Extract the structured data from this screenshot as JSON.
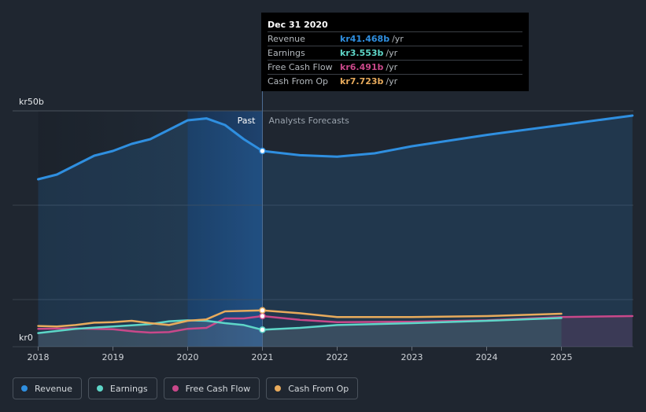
{
  "tooltip": {
    "date": "Dec 31 2020",
    "rows": [
      {
        "name": "Revenue",
        "value": "kr41.468b",
        "unit": "/yr",
        "color": "#2f8fe0"
      },
      {
        "name": "Earnings",
        "value": "kr3.553b",
        "unit": "/yr",
        "color": "#5ed6c8"
      },
      {
        "name": "Free Cash Flow",
        "value": "kr6.491b",
        "unit": "/yr",
        "color": "#c9488a"
      },
      {
        "name": "Cash From Op",
        "value": "kr7.723b",
        "unit": "/yr",
        "color": "#e8ab5c"
      }
    ]
  },
  "legend": [
    {
      "label": "Revenue",
      "color": "#2f8fe0"
    },
    {
      "label": "Earnings",
      "color": "#5ed6c8"
    },
    {
      "label": "Free Cash Flow",
      "color": "#c9488a"
    },
    {
      "label": "Cash From Op",
      "color": "#e8ab5c"
    }
  ],
  "chart_data": {
    "type": "line",
    "title": "",
    "xlabel": "",
    "ylabel": "",
    "y_unit_labels": {
      "top": "kr50b",
      "bottom": "kr0"
    },
    "ylim": [
      0,
      50
    ],
    "xlim": [
      2018.0,
      2025.95
    ],
    "x_ticks": [
      2018,
      2019,
      2020,
      2021,
      2022,
      2023,
      2024,
      2025
    ],
    "x_tick_labels": [
      "2018",
      "2019",
      "2020",
      "2021",
      "2022",
      "2023",
      "2024",
      "2025"
    ],
    "past_label": "Past",
    "forecast_label": "Analysts Forecasts",
    "divider_x": 2021.0,
    "series": [
      {
        "name": "Revenue",
        "color": "#2f8fe0",
        "points": [
          [
            2018.0,
            35.5
          ],
          [
            2018.25,
            36.5
          ],
          [
            2018.5,
            38.5
          ],
          [
            2018.75,
            40.5
          ],
          [
            2019.0,
            41.5
          ],
          [
            2019.25,
            43.0
          ],
          [
            2019.5,
            44.0
          ],
          [
            2019.75,
            46.0
          ],
          [
            2020.0,
            48.0
          ],
          [
            2020.25,
            48.4
          ],
          [
            2020.5,
            47.0
          ],
          [
            2020.75,
            44.0
          ],
          [
            2021.0,
            41.5
          ],
          [
            2021.5,
            40.6
          ],
          [
            2022.0,
            40.3
          ],
          [
            2022.5,
            41.0
          ],
          [
            2023.0,
            42.5
          ],
          [
            2024.0,
            44.9
          ],
          [
            2025.0,
            47.0
          ],
          [
            2025.95,
            49.0
          ]
        ],
        "markers": [
          [
            2021.0,
            41.5
          ]
        ]
      },
      {
        "name": "Earnings",
        "color": "#5ed6c8",
        "points": [
          [
            2018.0,
            2.9
          ],
          [
            2018.5,
            3.8
          ],
          [
            2019.0,
            4.3
          ],
          [
            2019.5,
            4.8
          ],
          [
            2019.75,
            5.4
          ],
          [
            2020.0,
            5.6
          ],
          [
            2020.25,
            5.5
          ],
          [
            2020.5,
            5.0
          ],
          [
            2020.75,
            4.6
          ],
          [
            2021.0,
            3.6
          ],
          [
            2021.5,
            4.0
          ],
          [
            2022.0,
            4.6
          ],
          [
            2023.0,
            5.0
          ],
          [
            2024.0,
            5.5
          ],
          [
            2025.0,
            6.1
          ]
        ],
        "markers": [
          [
            2021.0,
            3.6
          ]
        ]
      },
      {
        "name": "Free Cash Flow",
        "color": "#c9488a",
        "points": [
          [
            2018.0,
            3.8
          ],
          [
            2018.5,
            3.9
          ],
          [
            2019.0,
            3.7
          ],
          [
            2019.3,
            3.2
          ],
          [
            2019.5,
            3.0
          ],
          [
            2019.75,
            3.1
          ],
          [
            2020.0,
            3.8
          ],
          [
            2020.25,
            4.0
          ],
          [
            2020.5,
            6.0
          ],
          [
            2020.75,
            6.0
          ],
          [
            2021.0,
            6.5
          ],
          [
            2021.5,
            5.7
          ],
          [
            2022.0,
            5.2
          ],
          [
            2023.0,
            5.3
          ],
          [
            2024.0,
            5.6
          ],
          [
            2025.0,
            6.3
          ],
          [
            2025.95,
            6.5
          ]
        ],
        "markers": [
          [
            2021.0,
            6.5
          ]
        ]
      },
      {
        "name": "Cash From Op",
        "color": "#e8ab5c",
        "points": [
          [
            2018.0,
            4.4
          ],
          [
            2018.25,
            4.3
          ],
          [
            2018.5,
            4.6
          ],
          [
            2018.75,
            5.1
          ],
          [
            2019.0,
            5.2
          ],
          [
            2019.25,
            5.5
          ],
          [
            2019.5,
            5.0
          ],
          [
            2019.75,
            4.6
          ],
          [
            2020.0,
            5.5
          ],
          [
            2020.25,
            5.8
          ],
          [
            2020.5,
            7.5
          ],
          [
            2020.75,
            7.6
          ],
          [
            2021.0,
            7.7
          ],
          [
            2021.5,
            7.1
          ],
          [
            2022.0,
            6.3
          ],
          [
            2023.0,
            6.3
          ],
          [
            2024.0,
            6.5
          ],
          [
            2025.0,
            7.0
          ]
        ],
        "markers": [
          [
            2021.0,
            7.7
          ]
        ]
      }
    ]
  }
}
